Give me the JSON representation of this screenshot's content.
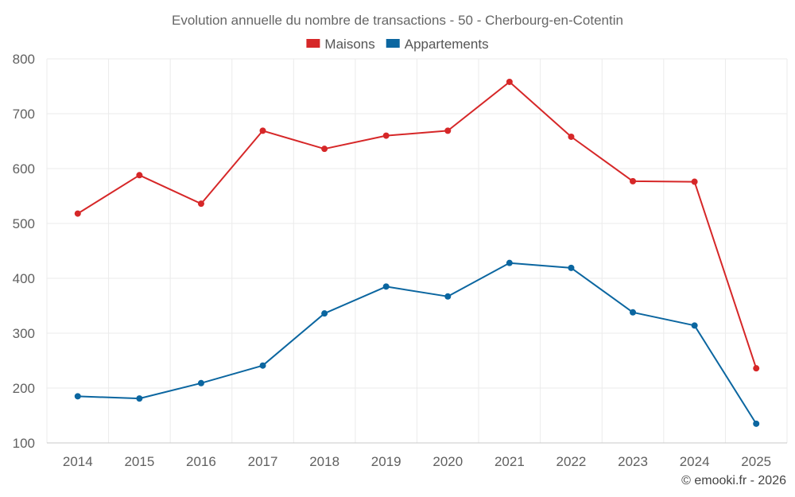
{
  "chart_data": {
    "type": "line",
    "title": "Evolution annuelle du nombre de transactions - 50 - Cherbourg-en-Cotentin",
    "categories": [
      "2014",
      "2015",
      "2016",
      "2017",
      "2018",
      "2019",
      "2020",
      "2021",
      "2022",
      "2023",
      "2024",
      "2025"
    ],
    "ylim": [
      100,
      800
    ],
    "yticks": [
      100,
      200,
      300,
      400,
      500,
      600,
      700,
      800
    ],
    "grid": true,
    "legend_position": "top-center",
    "series": [
      {
        "name": "Maisons",
        "color": "#d62728",
        "values": [
          518,
          588,
          536,
          669,
          636,
          660,
          669,
          758,
          658,
          577,
          576,
          236
        ]
      },
      {
        "name": "Appartements",
        "color": "#0b66a0",
        "values": [
          185,
          181,
          209,
          241,
          336,
          385,
          367,
          428,
          419,
          338,
          314,
          135
        ]
      }
    ]
  },
  "credit": "© emooki.fr - 2026"
}
